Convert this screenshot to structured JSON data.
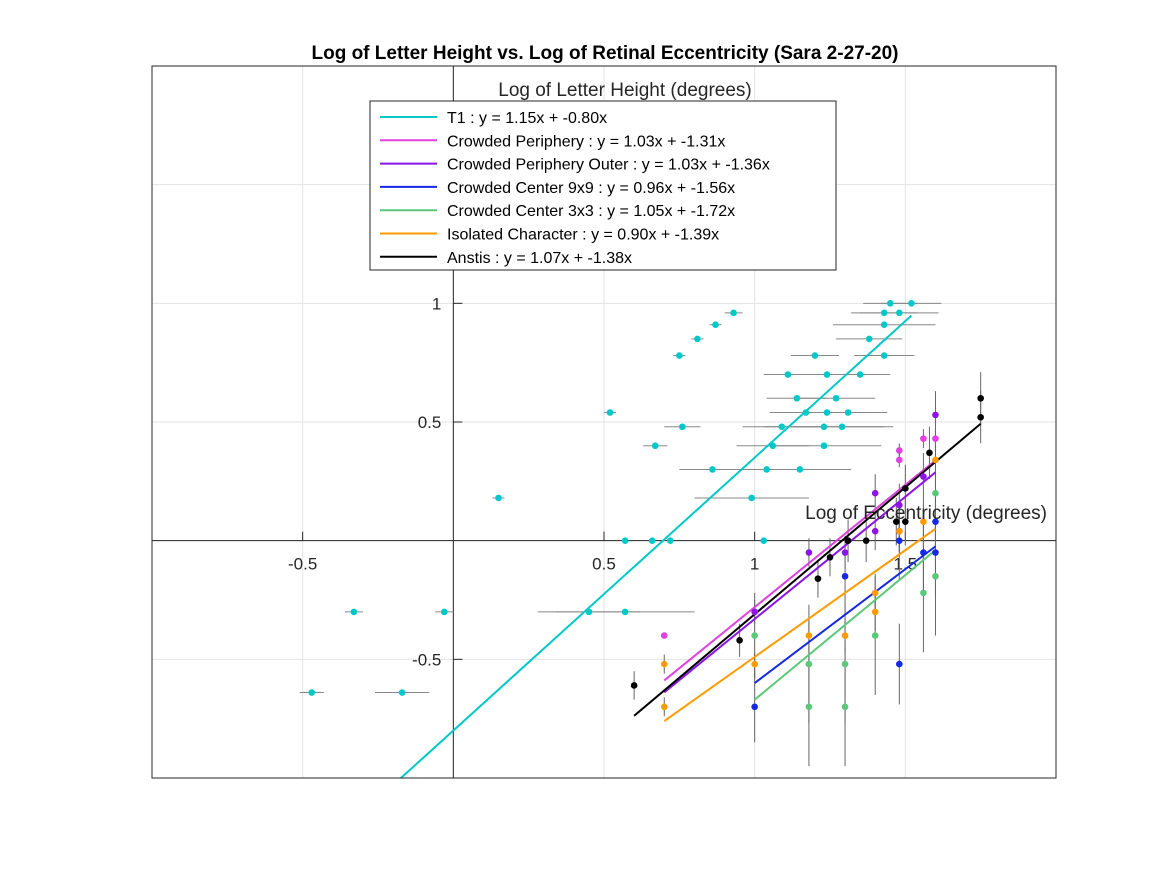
{
  "chart_data": {
    "type": "scatter",
    "title": "Log of Letter Height vs. Log of Retinal Eccentricity (Sara 2-27-20)",
    "xlabel": "Log of Eccentricity (degrees)",
    "ylabel": "Log of Letter Height (degrees)",
    "xlim": [
      -1.0,
      2.0
    ],
    "ylim": [
      -1.0,
      2.0
    ],
    "xticks": [
      -0.5,
      0.5,
      1,
      1.5
    ],
    "xtick_labels": [
      "-0.5",
      "0.5",
      "1",
      "1.5"
    ],
    "yticks": [
      -0.5,
      0.5,
      1
    ],
    "ytick_labels": [
      "-0.5",
      "0.5",
      "1"
    ],
    "grid": true,
    "axes_through_origin": true,
    "legend_position": "top-center",
    "series": [
      {
        "name": "T1 : y = 1.15x + -0.80x",
        "color": "#00c8c8",
        "fit": {
          "slope": 1.15,
          "intercept": -0.8,
          "x_range": [
            -0.19,
            1.52
          ]
        },
        "points": [
          {
            "x": -0.47,
            "y": -0.64,
            "xerr": 0.04,
            "yerr": 0
          },
          {
            "x": -0.33,
            "y": -0.3,
            "xerr": 0.03,
            "yerr": 0
          },
          {
            "x": -0.17,
            "y": -0.64,
            "xerr": 0.09,
            "yerr": 0
          },
          {
            "x": -0.03,
            "y": -0.3,
            "xerr": 0.03,
            "yerr": 0
          },
          {
            "x": 0.15,
            "y": 0.18,
            "xerr": 0.02,
            "yerr": 0
          },
          {
            "x": 0.45,
            "y": -0.3,
            "xerr": 0.17,
            "yerr": 0
          },
          {
            "x": 0.52,
            "y": 0.54,
            "xerr": 0.02,
            "yerr": 0
          },
          {
            "x": 0.57,
            "y": -0.3,
            "xerr": 0.23,
            "yerr": 0
          },
          {
            "x": 0.57,
            "y": 0.0,
            "xerr": 0,
            "yerr": 0
          },
          {
            "x": 0.66,
            "y": 0.0,
            "xerr": 0,
            "yerr": 0
          },
          {
            "x": 0.67,
            "y": 0.4,
            "xerr": 0.04,
            "yerr": 0
          },
          {
            "x": 0.72,
            "y": 0.0,
            "xerr": 0,
            "yerr": 0
          },
          {
            "x": 0.75,
            "y": 0.78,
            "xerr": 0.02,
            "yerr": 0
          },
          {
            "x": 0.76,
            "y": 0.48,
            "xerr": 0.06,
            "yerr": 0
          },
          {
            "x": 0.81,
            "y": 0.85,
            "xerr": 0.02,
            "yerr": 0
          },
          {
            "x": 0.86,
            "y": 0.3,
            "xerr": 0.11,
            "yerr": 0
          },
          {
            "x": 0.87,
            "y": 0.91,
            "xerr": 0.02,
            "yerr": 0
          },
          {
            "x": 0.93,
            "y": 0.96,
            "xerr": 0.03,
            "yerr": 0
          },
          {
            "x": 0.99,
            "y": 0.18,
            "xerr": 0.19,
            "yerr": 0
          },
          {
            "x": 1.03,
            "y": 0.0,
            "xerr": 0,
            "yerr": 0
          },
          {
            "x": 1.04,
            "y": 0.3,
            "xerr": 0.15,
            "yerr": 0
          },
          {
            "x": 1.06,
            "y": 0.4,
            "xerr": 0.12,
            "yerr": 0
          },
          {
            "x": 1.09,
            "y": 0.48,
            "xerr": 0.13,
            "yerr": 0
          },
          {
            "x": 1.11,
            "y": 0.7,
            "xerr": 0.08,
            "yerr": 0
          },
          {
            "x": 1.14,
            "y": 0.6,
            "xerr": 0.1,
            "yerr": 0
          },
          {
            "x": 1.15,
            "y": 0.3,
            "xerr": 0.17,
            "yerr": 0
          },
          {
            "x": 1.17,
            "y": 0.54,
            "xerr": 0.12,
            "yerr": 0
          },
          {
            "x": 1.2,
            "y": 0.78,
            "xerr": 0.08,
            "yerr": 0
          },
          {
            "x": 1.23,
            "y": 0.4,
            "xerr": 0.19,
            "yerr": 0
          },
          {
            "x": 1.23,
            "y": 0.48,
            "xerr": 0.2,
            "yerr": 0
          },
          {
            "x": 1.24,
            "y": 0.54,
            "xerr": 0.14,
            "yerr": 0
          },
          {
            "x": 1.24,
            "y": 0.7,
            "xerr": 0.12,
            "yerr": 0
          },
          {
            "x": 1.27,
            "y": 0.6,
            "xerr": 0.13,
            "yerr": 0
          },
          {
            "x": 1.29,
            "y": 0.48,
            "xerr": 0.17,
            "yerr": 0
          },
          {
            "x": 1.31,
            "y": 0.54,
            "xerr": 0.13,
            "yerr": 0
          },
          {
            "x": 1.35,
            "y": 0.7,
            "xerr": 0.1,
            "yerr": 0
          },
          {
            "x": 1.38,
            "y": 0.85,
            "xerr": 0.11,
            "yerr": 0
          },
          {
            "x": 1.43,
            "y": 0.96,
            "xerr": 0.11,
            "yerr": 0
          },
          {
            "x": 1.43,
            "y": 0.91,
            "xerr": 0.17,
            "yerr": 0
          },
          {
            "x": 1.43,
            "y": 0.78,
            "xerr": 0.1,
            "yerr": 0
          },
          {
            "x": 1.45,
            "y": 1.0,
            "xerr": 0.09,
            "yerr": 0
          },
          {
            "x": 1.48,
            "y": 0.96,
            "xerr": 0.13,
            "yerr": 0
          },
          {
            "x": 1.52,
            "y": 1.0,
            "xerr": 0.1,
            "yerr": 0
          }
        ]
      },
      {
        "name": "Crowded Periphery : y = 1.03x + -1.31x",
        "color": "#e040e0",
        "fit": {
          "slope": 1.03,
          "intercept": -1.31,
          "x_range": [
            0.7,
            1.6
          ]
        },
        "points": [
          {
            "x": 0.7,
            "y": -0.4,
            "xerr": 0,
            "yerr": 0
          },
          {
            "x": 1.0,
            "y": -0.3,
            "xerr": 0,
            "yerr": 0.02
          },
          {
            "x": 1.48,
            "y": 0.38,
            "xerr": 0,
            "yerr": 0.03
          },
          {
            "x": 1.48,
            "y": 0.34,
            "xerr": 0,
            "yerr": 0.03
          },
          {
            "x": 1.56,
            "y": 0.43,
            "xerr": 0,
            "yerr": 0.04
          },
          {
            "x": 1.6,
            "y": 0.43,
            "xerr": 0,
            "yerr": 0.04
          }
        ]
      },
      {
        "name": "Crowded Periphery Outer : y = 1.03x + -1.36x",
        "color": "#8c14e6",
        "fit": {
          "slope": 1.03,
          "intercept": -1.36,
          "x_range": [
            0.7,
            1.6
          ]
        },
        "points": [
          {
            "x": 1.0,
            "y": -0.3,
            "xerr": 0,
            "yerr": 0.05
          },
          {
            "x": 1.18,
            "y": -0.05,
            "xerr": 0,
            "yerr": 0.06
          },
          {
            "x": 1.3,
            "y": -0.05,
            "xerr": 0,
            "yerr": 0.07
          },
          {
            "x": 1.4,
            "y": 0.2,
            "xerr": 0,
            "yerr": 0.08
          },
          {
            "x": 1.4,
            "y": 0.04,
            "xerr": 0,
            "yerr": 0.08
          },
          {
            "x": 1.48,
            "y": 0.15,
            "xerr": 0,
            "yerr": 0.09
          },
          {
            "x": 1.48,
            "y": 0.04,
            "xerr": 0,
            "yerr": 0.09
          },
          {
            "x": 1.56,
            "y": 0.27,
            "xerr": 0,
            "yerr": 0.1
          },
          {
            "x": 1.6,
            "y": 0.53,
            "xerr": 0,
            "yerr": 0.1
          }
        ]
      },
      {
        "name": "Crowded Center 9x9 : y = 0.96x + -1.56x",
        "color": "#1428e6",
        "fit": {
          "slope": 0.96,
          "intercept": -1.56,
          "x_range": [
            1.0,
            1.6
          ]
        },
        "points": [
          {
            "x": 1.0,
            "y": -0.7,
            "xerr": 0,
            "yerr": 0.15
          },
          {
            "x": 1.3,
            "y": -0.15,
            "xerr": 0,
            "yerr": 0.16
          },
          {
            "x": 1.48,
            "y": 0.0,
            "xerr": 0,
            "yerr": 0.17
          },
          {
            "x": 1.48,
            "y": -0.52,
            "xerr": 0,
            "yerr": 0.17
          },
          {
            "x": 1.56,
            "y": -0.05,
            "xerr": 0,
            "yerr": 0.18
          },
          {
            "x": 1.6,
            "y": -0.05,
            "xerr": 0,
            "yerr": 0.18
          },
          {
            "x": 1.6,
            "y": 0.08,
            "xerr": 0,
            "yerr": 0.18
          }
        ]
      },
      {
        "name": "Crowded Center 3x3 : y = 1.05x + -1.72x",
        "color": "#5ac878",
        "fit": {
          "slope": 1.05,
          "intercept": -1.72,
          "x_range": [
            1.0,
            1.6
          ]
        },
        "points": [
          {
            "x": 1.0,
            "y": -0.4,
            "xerr": 0,
            "yerr": 0.18
          },
          {
            "x": 1.18,
            "y": -0.52,
            "xerr": 0,
            "yerr": 0.25
          },
          {
            "x": 1.18,
            "y": -0.7,
            "xerr": 0,
            "yerr": 0.25
          },
          {
            "x": 1.3,
            "y": -0.52,
            "xerr": 0,
            "yerr": 0.25
          },
          {
            "x": 1.3,
            "y": -0.7,
            "xerr": 0,
            "yerr": 0.25
          },
          {
            "x": 1.4,
            "y": -0.4,
            "xerr": 0,
            "yerr": 0.25
          },
          {
            "x": 1.56,
            "y": -0.22,
            "xerr": 0,
            "yerr": 0.25
          },
          {
            "x": 1.6,
            "y": -0.15,
            "xerr": 0,
            "yerr": 0.25
          },
          {
            "x": 1.6,
            "y": 0.2,
            "xerr": 0,
            "yerr": 0.25
          }
        ]
      },
      {
        "name": "Isolated Character : y = 0.90x + -1.39x",
        "color": "#ff9b00",
        "fit": {
          "slope": 0.9,
          "intercept": -1.39,
          "x_range": [
            0.7,
            1.6
          ]
        },
        "points": [
          {
            "x": 0.7,
            "y": -0.52,
            "xerr": 0,
            "yerr": 0.04
          },
          {
            "x": 0.7,
            "y": -0.7,
            "xerr": 0,
            "yerr": 0.04
          },
          {
            "x": 1.0,
            "y": -0.52,
            "xerr": 0,
            "yerr": 0.05
          },
          {
            "x": 1.18,
            "y": -0.4,
            "xerr": 0,
            "yerr": 0.06
          },
          {
            "x": 1.3,
            "y": -0.4,
            "xerr": 0,
            "yerr": 0.07
          },
          {
            "x": 1.4,
            "y": -0.3,
            "xerr": 0,
            "yerr": 0.08
          },
          {
            "x": 1.4,
            "y": -0.22,
            "xerr": 0,
            "yerr": 0.08
          },
          {
            "x": 1.48,
            "y": 0.04,
            "xerr": 0,
            "yerr": 0.09
          },
          {
            "x": 1.56,
            "y": 0.08,
            "xerr": 0,
            "yerr": 0.09
          },
          {
            "x": 1.6,
            "y": 0.34,
            "xerr": 0,
            "yerr": 0.1
          }
        ]
      },
      {
        "name": "Anstis : y = 1.07x + -1.38x",
        "color": "#000000",
        "fit": {
          "slope": 1.07,
          "intercept": -1.38,
          "x_range": [
            0.6,
            1.75
          ]
        },
        "points": [
          {
            "x": 0.6,
            "y": -0.61,
            "xerr": 0,
            "yerr": 0.06
          },
          {
            "x": 0.95,
            "y": -0.42,
            "xerr": 0,
            "yerr": 0.07
          },
          {
            "x": 1.21,
            "y": -0.16,
            "xerr": 0,
            "yerr": 0.08
          },
          {
            "x": 1.25,
            "y": -0.07,
            "xerr": 0,
            "yerr": 0.08
          },
          {
            "x": 1.31,
            "y": 0.0,
            "xerr": 0,
            "yerr": 0.09
          },
          {
            "x": 1.37,
            "y": 0.0,
            "xerr": 0,
            "yerr": 0.09
          },
          {
            "x": 1.47,
            "y": 0.08,
            "xerr": 0,
            "yerr": 0.1
          },
          {
            "x": 1.5,
            "y": 0.22,
            "xerr": 0,
            "yerr": 0.1
          },
          {
            "x": 1.5,
            "y": 0.08,
            "xerr": 0,
            "yerr": 0.1
          },
          {
            "x": 1.58,
            "y": 0.37,
            "xerr": 0,
            "yerr": 0.11
          },
          {
            "x": 1.75,
            "y": 0.6,
            "xerr": 0,
            "yerr": 0.11
          },
          {
            "x": 1.75,
            "y": 0.52,
            "xerr": 0,
            "yerr": 0.11
          }
        ]
      }
    ]
  }
}
